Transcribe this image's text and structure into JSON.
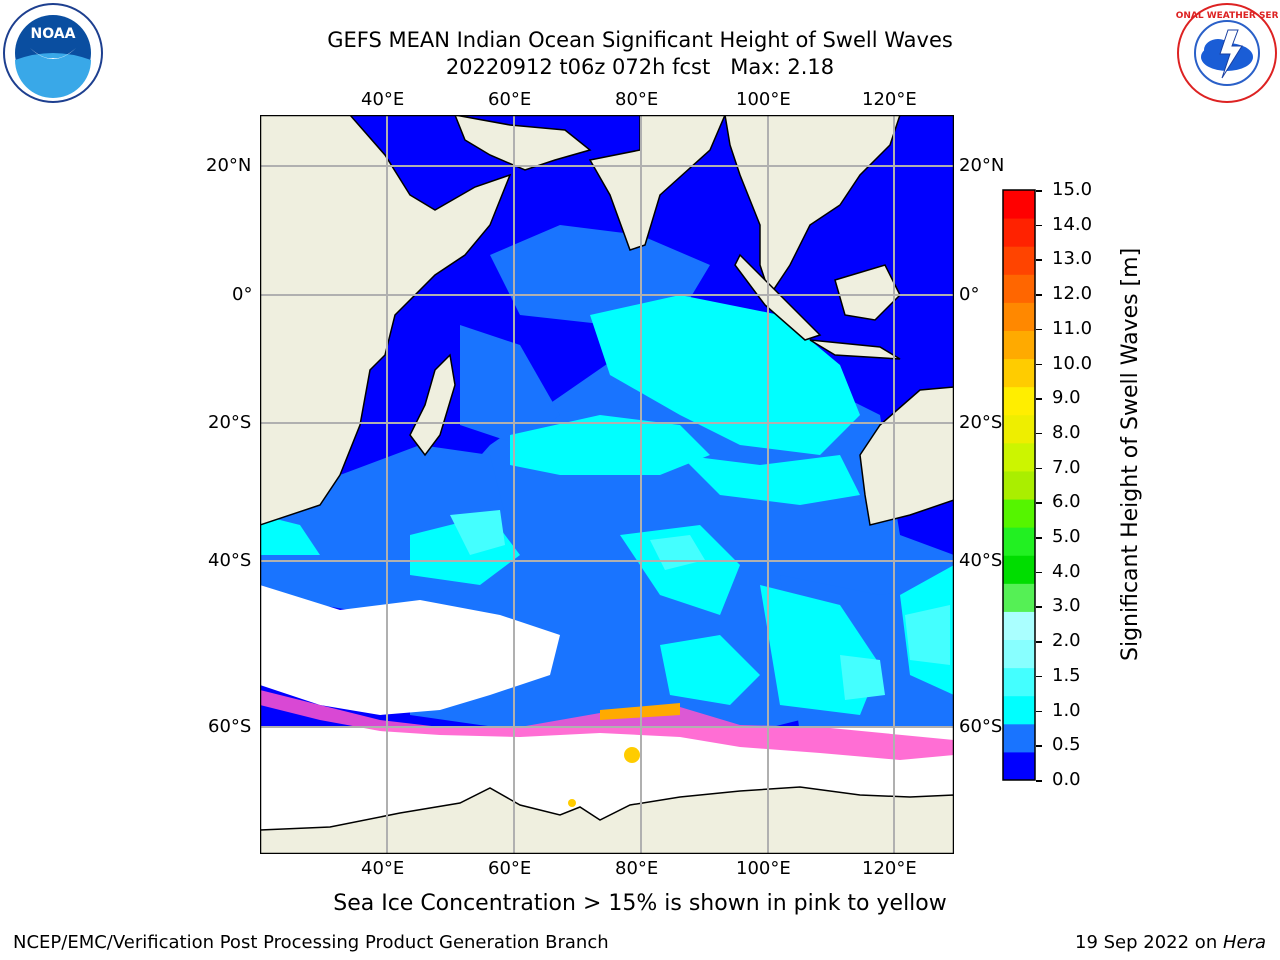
{
  "header": {
    "title_line1": "GEFS MEAN Indian Ocean Significant Height of Swell Waves",
    "title_line2": "20220912 t06z 072h fcst   Max: 2.18"
  },
  "logos": {
    "left": {
      "text": "NOAA",
      "icon": "noaa-logo"
    },
    "right": {
      "text": "NATIONAL WEATHER SERVICE",
      "icon": "nws-logo"
    }
  },
  "map": {
    "lon_ticks_top": [
      "40°E",
      "60°E",
      "80°E",
      "100°E",
      "120°E"
    ],
    "lon_ticks_bottom": [
      "40°E",
      "60°E",
      "80°E",
      "100°E",
      "120°E"
    ],
    "lat_ticks_left": [
      "20°N",
      "0°",
      "20°S",
      "40°S",
      "60°S"
    ],
    "lat_ticks_right": [
      "20°N",
      "0°",
      "20°S",
      "40°S",
      "60°S"
    ],
    "colors": {
      "land": "#efefdf",
      "ocean_0": "#0000ff",
      "ocean_05": "#1974ff",
      "ocean_1": "#00ffff",
      "ocean_15": "#44ffff",
      "ice": "#ffffff",
      "ice_edge": "#ff55cc"
    }
  },
  "colorbar": {
    "label": "Significant Height of Swell Waves [m]",
    "ticks": [
      "15.0",
      "14.0",
      "13.0",
      "12.0",
      "11.0",
      "10.0",
      "9.0",
      "8.0",
      "7.0",
      "6.0",
      "5.0",
      "4.0",
      "3.0",
      "2.0",
      "1.5",
      "1.0",
      "0.5",
      "0.0"
    ],
    "colors": [
      "#0000ff",
      "#1974ff",
      "#00ffff",
      "#44ffff",
      "#88ffff",
      "#aaffff",
      "#55f055",
      "#00dd00",
      "#22f022",
      "#55f500",
      "#aaee00",
      "#ccf500",
      "#eeee00",
      "#ffee00",
      "#ffcc00",
      "#ffaa00",
      "#ff8800",
      "#ff6600",
      "#ff4400",
      "#ff2200",
      "#ff0000"
    ]
  },
  "caption": "Sea Ice Concentration > 15% is shown in pink to yellow",
  "footer": {
    "left": "NCEP/EMC/Verification Post Processing Product Generation Branch",
    "right_prefix": "19 Sep 2022 on ",
    "right_host": "Hera"
  }
}
